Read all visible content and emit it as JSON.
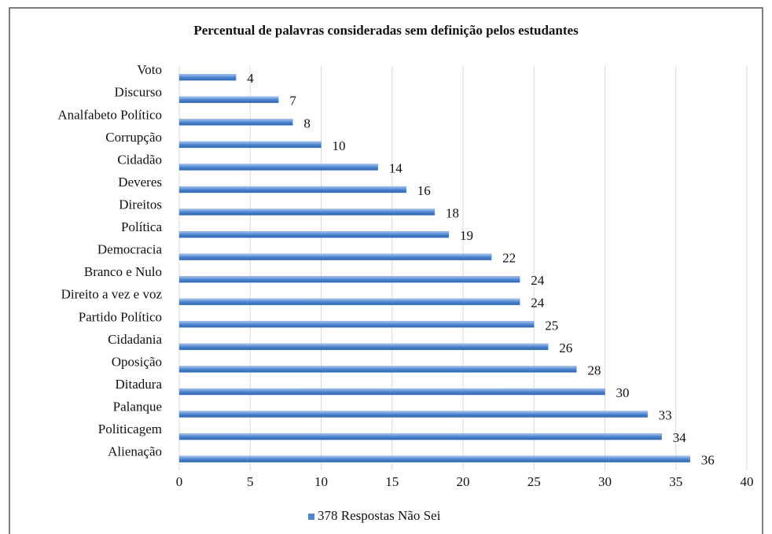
{
  "chart_data": {
    "type": "bar",
    "orientation": "horizontal",
    "title": "Percentual de palavras consideradas sem definição pelos  estudantes",
    "categories": [
      "Voto",
      "Discurso",
      "Analfabeto Político",
      "Corrupção",
      "Cidadão",
      "Deveres",
      "Direitos",
      "Política",
      "Democracia",
      "Branco e Nulo",
      "Direito a vez e voz",
      "Partido Político",
      "Cidadania",
      "Oposição",
      "Ditadura",
      "Palanque",
      "Politicagem",
      "Alienação"
    ],
    "series": [
      {
        "name": "378 Respostas Não Sei",
        "color": "#4f86cf",
        "values": [
          4,
          7,
          8,
          10,
          14,
          16,
          18,
          19,
          22,
          24,
          24,
          25,
          26,
          28,
          30,
          33,
          34,
          36
        ]
      }
    ],
    "xlim": [
      0,
      40
    ],
    "xticks": [
      0,
      5,
      10,
      15,
      20,
      25,
      30,
      35,
      40
    ],
    "grid": true,
    "legend": "bottom"
  }
}
